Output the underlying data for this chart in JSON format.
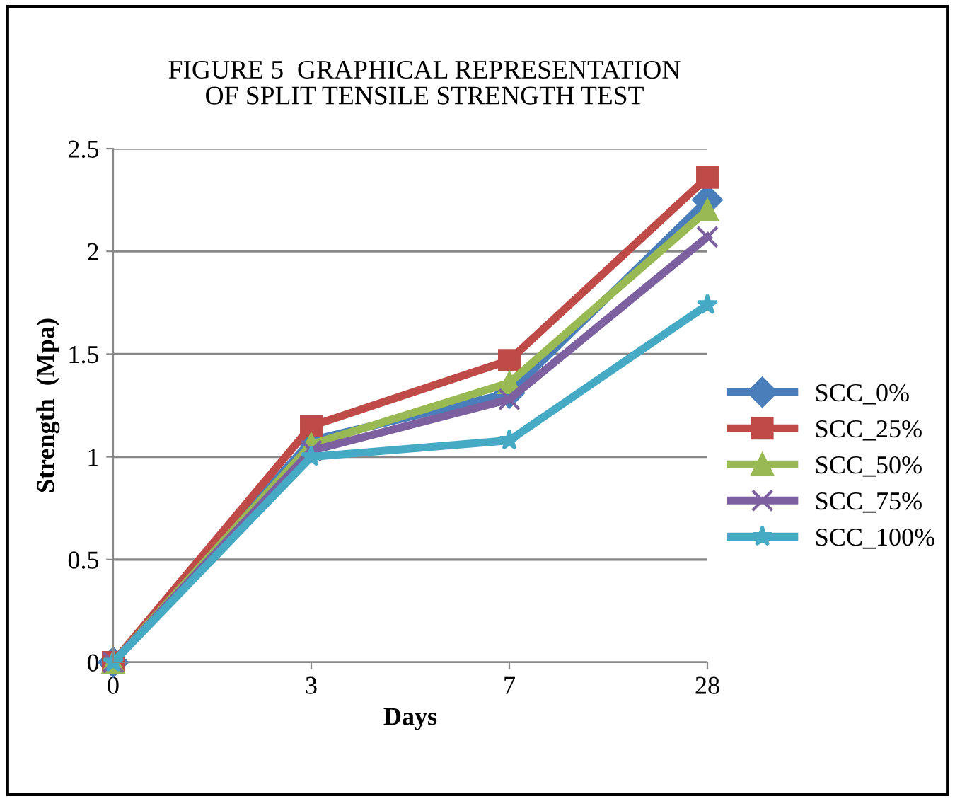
{
  "chart_data": {
    "type": "line",
    "title": "FIGURE 5  GRAPHICAL REPRESENTATION\nOF SPLIT TENSILE STRENGTH TEST",
    "xlabel": "Days",
    "ylabel": "Strength  (Mpa)",
    "categories": [
      "0",
      "3",
      "7",
      "28"
    ],
    "ylim": [
      0,
      2.5
    ],
    "yticks": [
      0,
      0.5,
      1,
      1.5,
      2,
      2.5
    ],
    "grid": "y",
    "legend": "right",
    "series": [
      {
        "name": "SCC_0%",
        "color": "#4a7ebb",
        "marker": "diamond",
        "values": [
          0,
          1.08,
          1.31,
          2.25
        ]
      },
      {
        "name": "SCC_25%",
        "color": "#be4b48",
        "marker": "square",
        "values": [
          0,
          1.15,
          1.47,
          2.36
        ]
      },
      {
        "name": "SCC_50%",
        "color": "#98b954",
        "marker": "triangle",
        "values": [
          0,
          1.06,
          1.36,
          2.2
        ]
      },
      {
        "name": "SCC_75%",
        "color": "#7d60a0",
        "marker": "cross",
        "values": [
          0,
          1.03,
          1.28,
          2.07
        ]
      },
      {
        "name": "SCC_100%",
        "color": "#46aac5",
        "marker": "star",
        "values": [
          0,
          1.0,
          1.08,
          1.74
        ]
      }
    ]
  }
}
